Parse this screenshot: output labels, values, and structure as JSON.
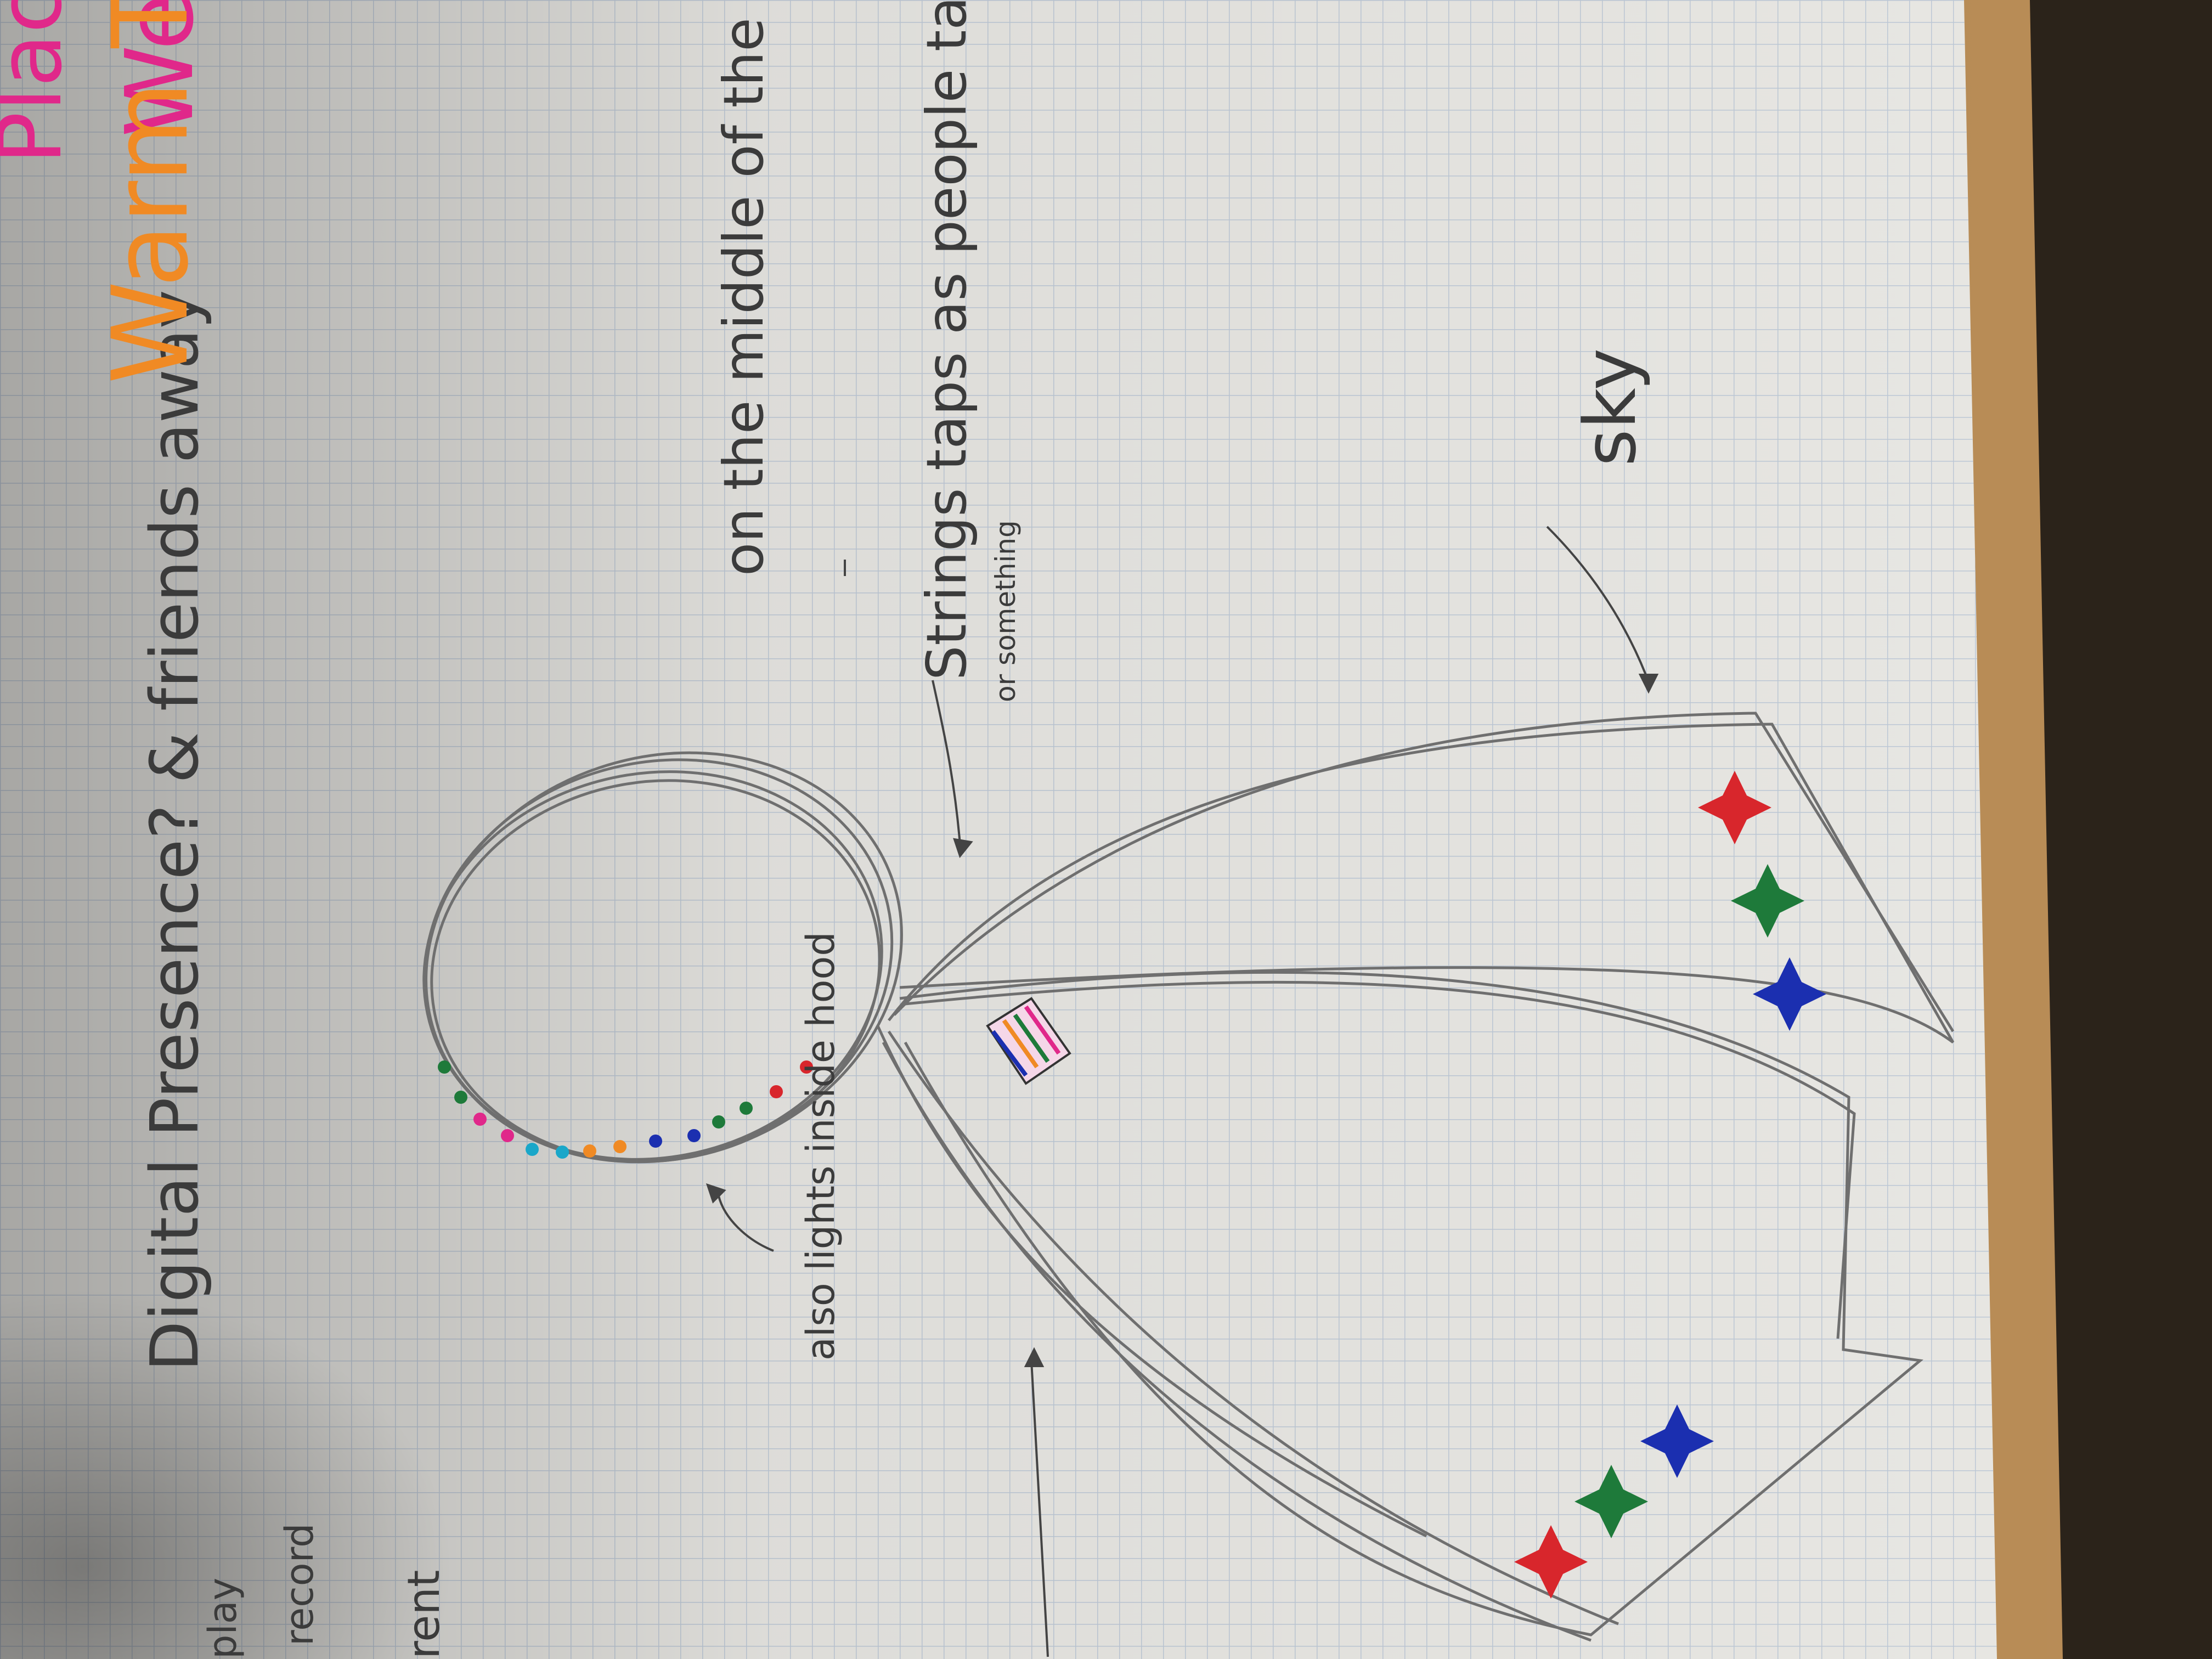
{
  "notes": {
    "digital_presence": "Digital Presence? & friends away",
    "also_lights": "also lights inside hood",
    "on_middle": "on the middle of the cape",
    "strings_taps": "Strings taps as people talk",
    "or_something": "or something",
    "sky": "sky",
    "edge_play": "play",
    "edge_record": "record",
    "edge_rent": "rent"
  },
  "corner_text": {
    "place": "Place",
    "we": "We",
    "warm_together": "Warm Together"
  },
  "colors": {
    "paper": "#e9e8e4",
    "grid": "#b9c6d6",
    "pencil": "#6f6f6f",
    "ink": "#3b3b3b",
    "red": "#d8262c",
    "green": "#1e7a3a",
    "blue": "#1b2fb0",
    "orange": "#f08a24",
    "pink": "#e0288a",
    "cyan": "#1aa7c9",
    "table": "#b98d57"
  }
}
